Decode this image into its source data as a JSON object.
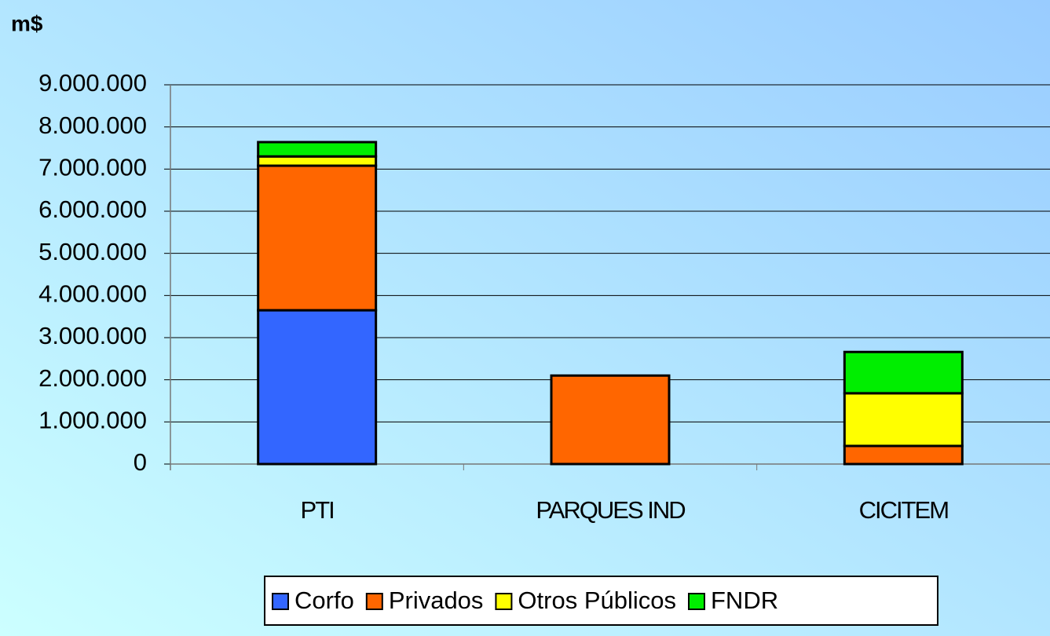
{
  "chart_data": {
    "type": "stacked_bar",
    "title": "m$",
    "categories": [
      "PTI",
      "PARQUES IND",
      "CICITEM"
    ],
    "series": [
      {
        "name": "Corfo",
        "color": "#3366ff",
        "values": [
          3650000,
          0,
          0
        ]
      },
      {
        "name": "Privados",
        "color": "#ff6600",
        "values": [
          3430000,
          2100000,
          430000
        ]
      },
      {
        "name": "Otros Públicos",
        "color": "#ffff00",
        "values": [
          220000,
          0,
          1250000
        ]
      },
      {
        "name": "FNDR",
        "color": "#00ee00",
        "values": [
          340000,
          0,
          980000
        ]
      }
    ],
    "ylim": [
      0,
      9000000
    ],
    "yticks": [
      0,
      {
        "value": 1000000,
        "label": "1.000.000"
      },
      {
        "value": 2000000,
        "label": "2.000.000"
      },
      {
        "value": 3000000,
        "label": "3.000.000"
      },
      {
        "value": 4000000,
        "label": "4.000.000"
      },
      {
        "value": 5000000,
        "label": "5.000.000"
      },
      {
        "value": 6000000,
        "label": "6.000.000"
      },
      {
        "value": 7000000,
        "label": "7.000.000"
      },
      {
        "value": 8000000,
        "label": "8.000.000"
      },
      {
        "value": 9000000,
        "label": "9.000.000"
      }
    ],
    "grid": true,
    "legend": "bottom"
  }
}
